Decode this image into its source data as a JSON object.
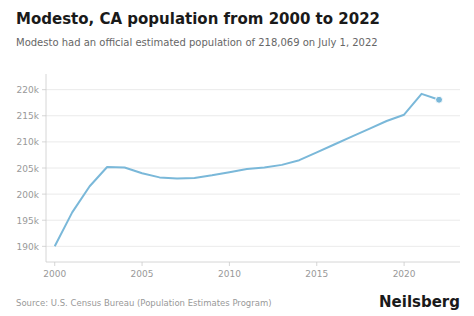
{
  "chart_data": {
    "type": "line",
    "title": "Modesto, CA population from 2000 to 2022",
    "subtitle": "Modesto had an official estimated population of 218,069 on July 1, 2022",
    "annotations": [
      "Source: U.S. Census Bureau (Population Estimates Program)",
      "Neilsberg"
    ],
    "x": [
      2000,
      2001,
      2002,
      2003,
      2004,
      2005,
      2006,
      2007,
      2008,
      2009,
      2010,
      2011,
      2012,
      2013,
      2014,
      2015,
      2016,
      2017,
      2018,
      2019,
      2020,
      2021,
      2022
    ],
    "values": [
      190000,
      196500,
      201500,
      205200,
      205100,
      204000,
      203200,
      203000,
      203100,
      203600,
      204200,
      204800,
      205100,
      205600,
      206500,
      208000,
      209500,
      211000,
      212500,
      214000,
      215200,
      219200,
      218069
    ],
    "color": "#7ab8d9",
    "xlim": [
      1999.5,
      2023.2
    ],
    "xticks": [
      2000,
      2005,
      2010,
      2015,
      2020
    ],
    "ylim": [
      187000,
      223000
    ],
    "yticks": [
      {
        "value": 190000,
        "label": "190k"
      },
      {
        "value": 195000,
        "label": "195k"
      },
      {
        "value": 200000,
        "label": "200k"
      },
      {
        "value": 205000,
        "label": "205k"
      },
      {
        "value": 210000,
        "label": "210k"
      },
      {
        "value": 215000,
        "label": "215k"
      },
      {
        "value": 220000,
        "label": "220k"
      }
    ],
    "grid": true
  }
}
